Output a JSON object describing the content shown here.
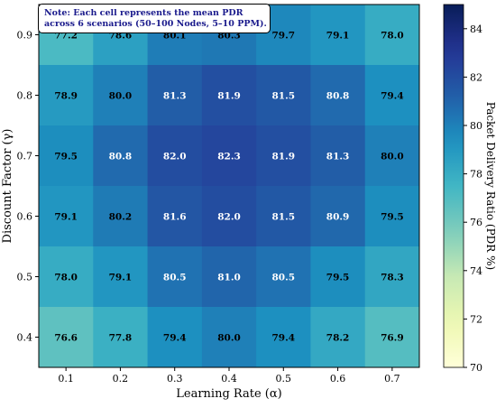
{
  "chart_data": {
    "type": "heatmap",
    "xlabel": "Learning Rate (α)",
    "ylabel": "Discount Factor (γ)",
    "x_categories": [
      "0.1",
      "0.2",
      "0.3",
      "0.4",
      "0.5",
      "0.6",
      "0.7"
    ],
    "y_categories": [
      "0.9",
      "0.8",
      "0.7",
      "0.6",
      "0.5",
      "0.4"
    ],
    "values": [
      [
        77.2,
        78.6,
        80.1,
        80.3,
        79.7,
        79.1,
        78.0
      ],
      [
        78.9,
        80.0,
        81.3,
        81.9,
        81.5,
        80.8,
        79.4
      ],
      [
        79.5,
        80.8,
        82.0,
        82.3,
        81.9,
        81.3,
        80.0
      ],
      [
        79.1,
        80.2,
        81.6,
        82.0,
        81.5,
        80.9,
        79.5
      ],
      [
        78.0,
        79.1,
        80.5,
        81.0,
        80.5,
        79.5,
        78.3
      ],
      [
        76.6,
        77.8,
        79.4,
        80.0,
        79.4,
        78.2,
        76.9
      ]
    ],
    "cell_labels": [
      [
        "77.2",
        "78.6",
        "80.1",
        "80.3",
        "79.7",
        "79.1",
        "78.0"
      ],
      [
        "78.9",
        "80.0",
        "81.3",
        "81.9",
        "81.5",
        "80.8",
        "79.4"
      ],
      [
        "79.5",
        "80.8",
        "82.0",
        "82.3",
        "81.9",
        "81.3",
        "80.0"
      ],
      [
        "79.1",
        "80.2",
        "81.6",
        "82.0",
        "81.5",
        "80.9",
        "79.5"
      ],
      [
        "78.0",
        "79.1",
        "80.5",
        "81.0",
        "80.5",
        "79.5",
        "78.3"
      ],
      [
        "76.6",
        "77.8",
        "79.4",
        "80.0",
        "79.4",
        "78.2",
        "76.9"
      ]
    ],
    "colorbar": {
      "label": "Packet Delivery Ratio (PDR %)",
      "range": [
        70,
        85
      ],
      "ticks": [
        "70",
        "72",
        "74",
        "76",
        "78",
        "80",
        "82",
        "84"
      ],
      "colormap": "YlGnBu"
    },
    "annotation": {
      "lines": [
        "Note: Each cell represents the mean PDR",
        "across 6 scenarios (50–100 Nodes, 5–10 PPM)."
      ],
      "color": "#1a1a8c"
    }
  }
}
